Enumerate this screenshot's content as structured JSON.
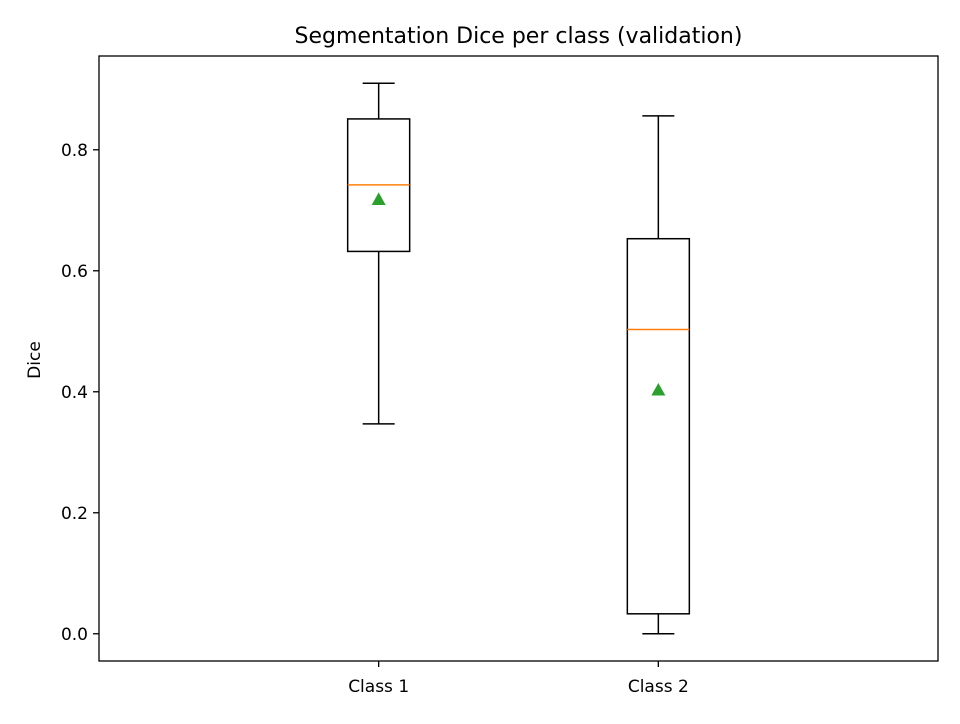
{
  "chart_data": {
    "type": "box",
    "title": "Segmentation Dice per class (validation)",
    "xlabel": "",
    "ylabel": "Dice",
    "ylim": [
      -0.045,
      0.955
    ],
    "yticks": [
      0.0,
      0.2,
      0.4,
      0.6,
      0.8
    ],
    "ytick_labels": [
      "0.0",
      "0.2",
      "0.4",
      "0.6",
      "0.8"
    ],
    "grid": false,
    "categories": [
      "Class 1",
      "Class 2"
    ],
    "boxes": [
      {
        "category": "Class 1",
        "whisker_low": 0.347,
        "q1": 0.632,
        "median": 0.742,
        "q3": 0.851,
        "whisker_high": 0.91,
        "mean": 0.718
      },
      {
        "category": "Class 2",
        "whisker_low": 0.0,
        "q1": 0.033,
        "median": 0.503,
        "q3": 0.653,
        "whisker_high": 0.856,
        "mean": 0.403
      }
    ],
    "colors": {
      "box": "#000000",
      "median": "#ff7f0e",
      "mean_marker": "#2ca02c"
    }
  }
}
